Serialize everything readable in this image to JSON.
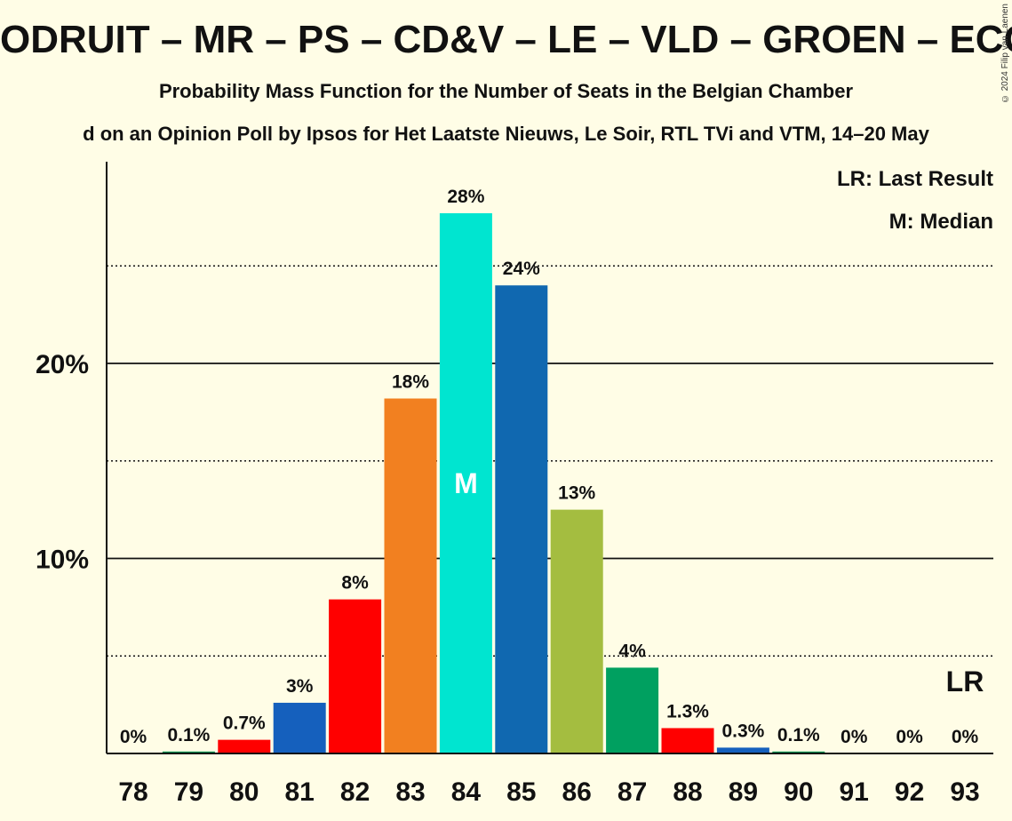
{
  "header": {
    "title": "ODRUIT – MR – PS – CD&V – LE – VLD – GROEN – ECO",
    "subtitle": "Probability Mass Function for the Number of Seats in the Belgian Chamber",
    "subtitle2": "d on an Opinion Poll by Ipsos for Het Laatste Nieuws, Le Soir, RTL TVi and VTM, 14–20 May",
    "copyright": "© 2024 Filip van Laenen"
  },
  "legend": {
    "last_result": "LR: Last Result",
    "median": "M: Median"
  },
  "chart_data": {
    "type": "bar",
    "categories": [
      "78",
      "79",
      "80",
      "81",
      "82",
      "83",
      "84",
      "85",
      "86",
      "87",
      "88",
      "89",
      "90",
      "91",
      "92",
      "93"
    ],
    "values": [
      0,
      0.1,
      0.7,
      2.6,
      7.9,
      18.2,
      27.7,
      24.0,
      12.5,
      4.4,
      1.3,
      0.3,
      0.1,
      0,
      0,
      0
    ],
    "data_labels": [
      "0%",
      "0.1%",
      "0.7%",
      "3%",
      "8%",
      "18%",
      "28%",
      "24%",
      "13%",
      "4%",
      "1.3%",
      "0.3%",
      "0.1%",
      "0%",
      "0%",
      "0%"
    ],
    "colors": [
      "#F28020",
      "#0A8F50",
      "#FF0000",
      "#1560BD",
      "#FF0000",
      "#F28020",
      "#00E5D0",
      "#1068B0",
      "#A4BD40",
      "#00A060",
      "#FF0000",
      "#1560BD",
      "#0A8F50",
      "#F28020",
      "#1068B0",
      "#A4BD40"
    ],
    "yticks": [
      10,
      20
    ],
    "ytick_labels": [
      "10%",
      "20%"
    ],
    "minor_gridlines": [
      5,
      15,
      25
    ],
    "ylim": [
      0,
      30
    ],
    "median_seat": "84",
    "median_label": "M",
    "last_result_seat": "93",
    "last_result_label": "LR",
    "grid": true,
    "legend_position": "top-right"
  }
}
